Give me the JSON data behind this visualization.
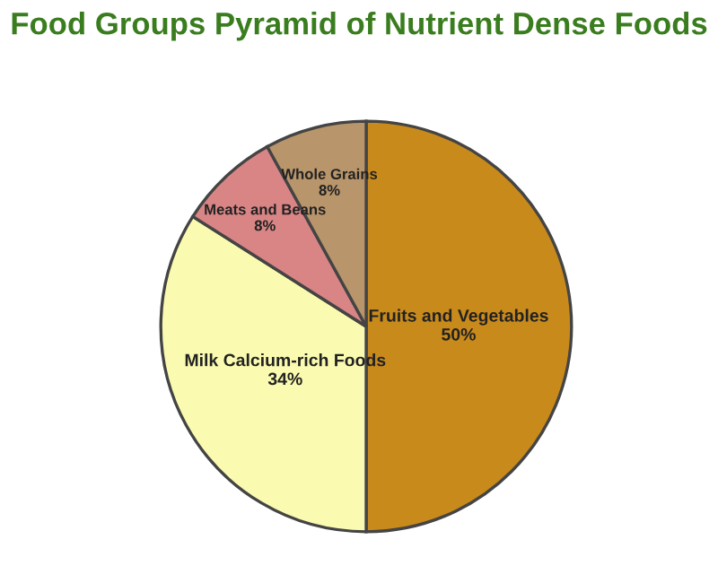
{
  "chart_data": {
    "type": "pie",
    "title": "Food Groups Pyramid of Nutrient Dense Foods",
    "categories": [
      "Fruits and Vegetables",
      "Milk Calcium-rich Foods",
      "Meats and Beans",
      "Whole Grains"
    ],
    "values": [
      50,
      34,
      8,
      8
    ],
    "value_labels": [
      "50%",
      "34%",
      "8%",
      "8%"
    ],
    "colors": [
      "#c98a1c",
      "#fafab0",
      "#d98585",
      "#b8956a"
    ],
    "legend": false
  }
}
